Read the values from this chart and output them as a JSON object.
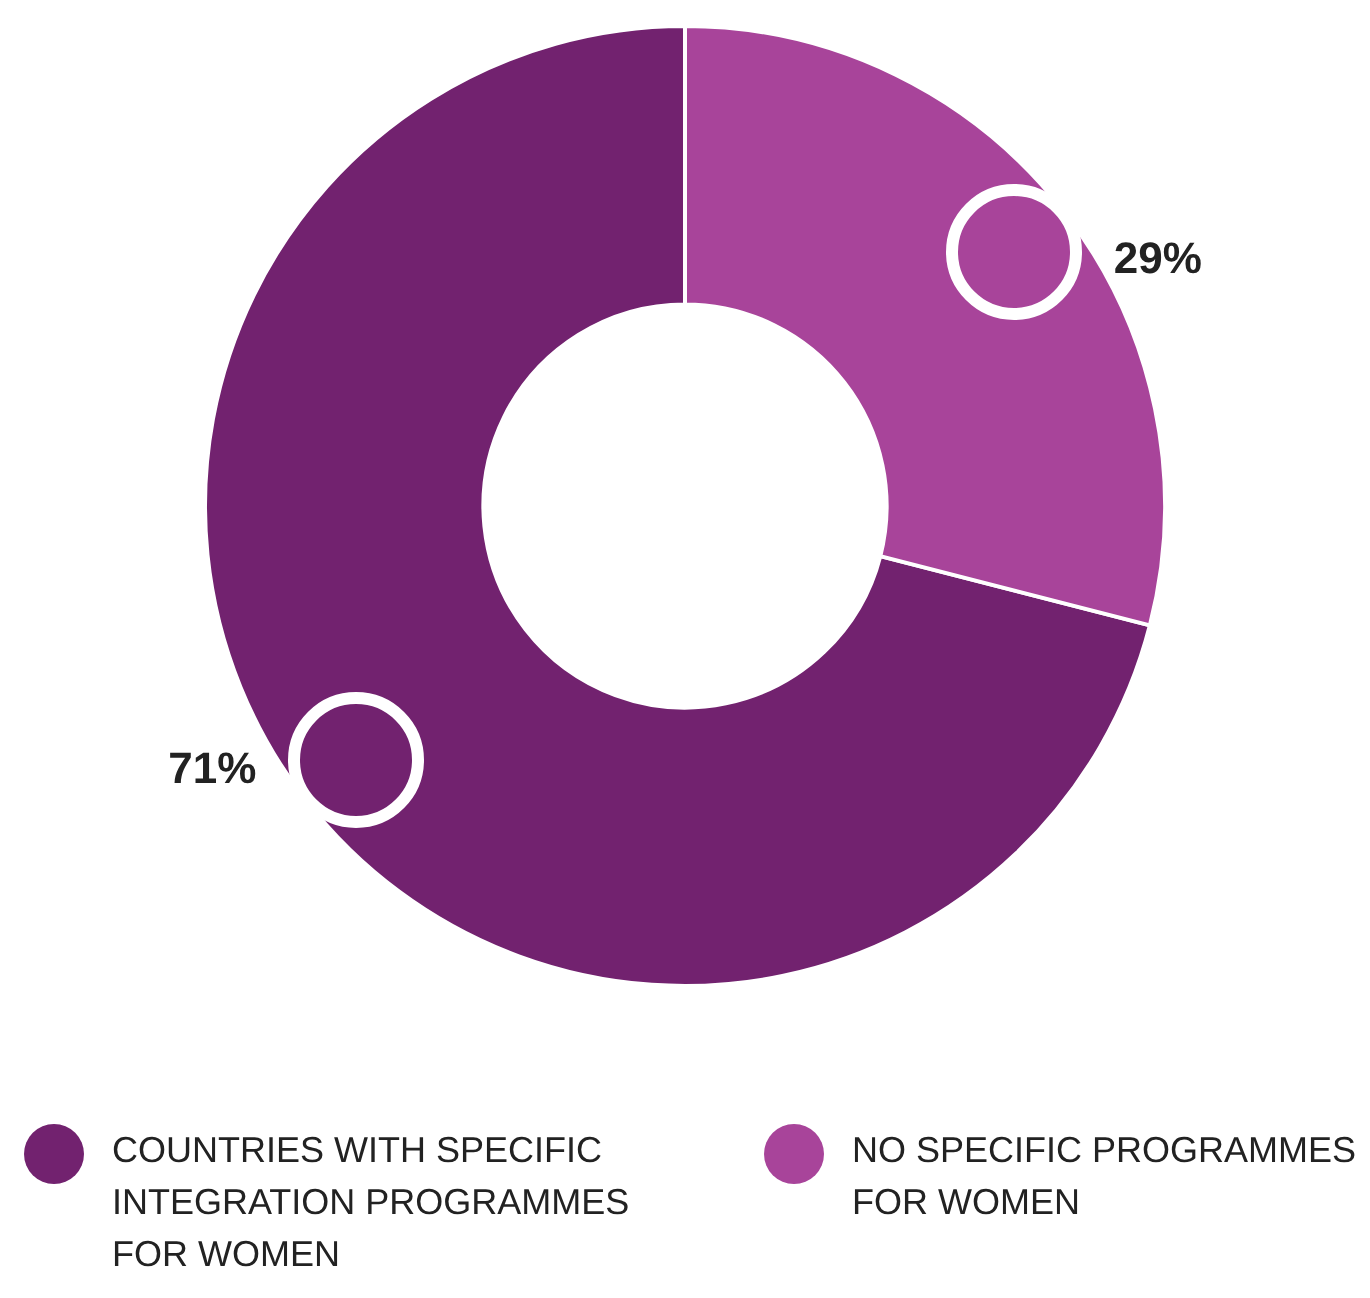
{
  "chart_data": {
    "type": "donut",
    "categories": [
      "COUNTRIES WITH SPECIFIC INTEGRATION PROGRAMMES FOR WOMEN",
      "NO SPECIFIC PROGRAMMES FOR WOMEN"
    ],
    "values": [
      71,
      29
    ],
    "colors": [
      "#72226f",
      "#a8449a"
    ],
    "value_labels": [
      "71%",
      "29%"
    ],
    "legend": "bottom"
  }
}
